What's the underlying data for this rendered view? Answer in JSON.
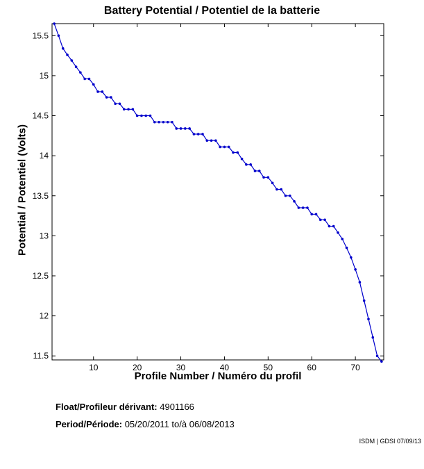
{
  "chart_data": {
    "type": "line",
    "title": "Battery Potential / Potentiel de la batterie",
    "xlabel": "Profile Number / Numéro du profil",
    "ylabel": "Potential / Potentiel (Volts)",
    "xlim": [
      0.5,
      76.5
    ],
    "ylim": [
      11.45,
      15.65
    ],
    "xticks": [
      10,
      20,
      30,
      40,
      50,
      60,
      70
    ],
    "yticks": [
      11.5,
      12,
      12.5,
      13,
      13.5,
      14,
      14.5,
      15,
      15.5
    ],
    "grid": false,
    "series_color": "#0000cc",
    "x": [
      1,
      2,
      3,
      4,
      5,
      6,
      7,
      8,
      9,
      10,
      11,
      12,
      13,
      14,
      15,
      16,
      17,
      18,
      19,
      20,
      21,
      22,
      23,
      24,
      25,
      26,
      27,
      28,
      29,
      30,
      31,
      32,
      33,
      34,
      35,
      36,
      37,
      38,
      39,
      40,
      41,
      42,
      43,
      44,
      45,
      46,
      47,
      48,
      49,
      50,
      51,
      52,
      53,
      54,
      55,
      56,
      57,
      58,
      59,
      60,
      61,
      62,
      63,
      64,
      65,
      66,
      67,
      68,
      69,
      70,
      71,
      72,
      73,
      74,
      75,
      76
    ],
    "y": [
      15.65,
      15.5,
      15.34,
      15.26,
      15.19,
      15.11,
      15.04,
      14.96,
      14.96,
      14.89,
      14.8,
      14.8,
      14.73,
      14.73,
      14.65,
      14.65,
      14.58,
      14.58,
      14.58,
      14.5,
      14.5,
      14.5,
      14.5,
      14.42,
      14.42,
      14.42,
      14.42,
      14.42,
      14.34,
      14.34,
      14.34,
      14.34,
      14.27,
      14.27,
      14.27,
      14.19,
      14.19,
      14.19,
      14.11,
      14.11,
      14.11,
      14.04,
      14.04,
      13.96,
      13.89,
      13.89,
      13.81,
      13.81,
      13.73,
      13.73,
      13.66,
      13.58,
      13.58,
      13.5,
      13.5,
      13.43,
      13.35,
      13.35,
      13.35,
      13.27,
      13.27,
      13.2,
      13.2,
      13.12,
      13.12,
      13.04,
      12.96,
      12.85,
      12.73,
      12.58,
      12.42,
      12.19,
      11.96,
      11.73,
      11.5,
      11.43
    ]
  },
  "info": {
    "float_label": "Float/Profileur dérivant:",
    "float_value": "4901166",
    "period_label": "Period/Période:",
    "period_value": "05/20/2011  to/à  06/08/2013"
  },
  "credit": "ISDM | GDSI 07/09/13"
}
